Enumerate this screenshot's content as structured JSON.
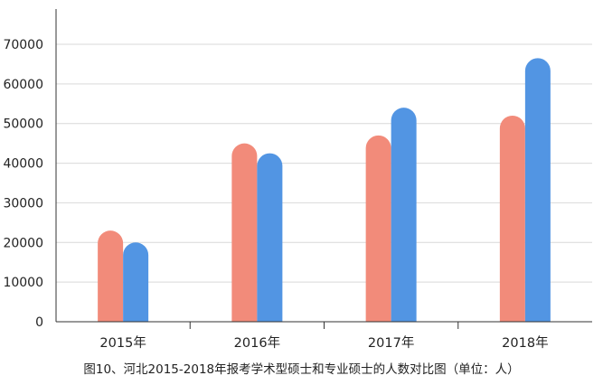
{
  "chart_data": {
    "type": "bar",
    "title": "图10、河北2015-2018年报考学术型硕士和专业硕士的人数对比图（单位：人）",
    "xlabel": "",
    "ylabel": "",
    "categories": [
      "2015年",
      "2016年",
      "2017年",
      "2018年"
    ],
    "series": [
      {
        "values": [
          23000,
          45000,
          47000,
          52000
        ],
        "color": "#f28b7a"
      },
      {
        "values": [
          20000,
          42500,
          54000,
          66500
        ],
        "color": "#5295e3"
      }
    ],
    "ylim": [
      0,
      70000
    ],
    "yticks": [
      {
        "value": 0,
        "label": "0"
      },
      {
        "value": 10000,
        "label": "10000"
      },
      {
        "value": 20000,
        "label": "20000"
      },
      {
        "value": 30000,
        "label": "30000"
      },
      {
        "value": 40000,
        "label": "40000"
      },
      {
        "value": 50000,
        "label": "50000"
      },
      {
        "value": 60000,
        "label": "60000"
      },
      {
        "value": 70000,
        "label": "70000"
      }
    ],
    "grid": true,
    "bar_style": "rounded-top"
  }
}
